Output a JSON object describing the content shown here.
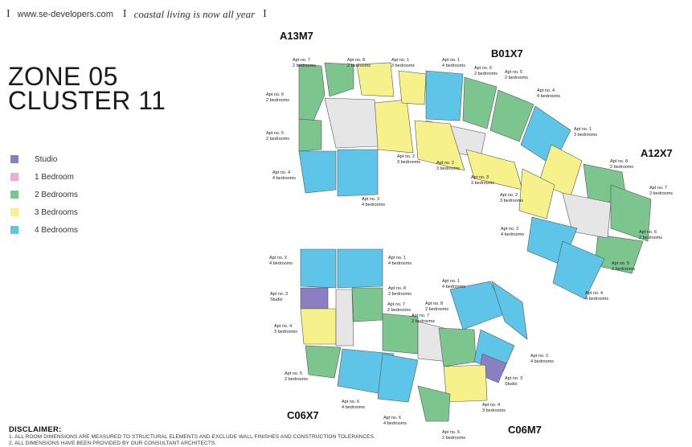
{
  "header": {
    "separator": "I",
    "url": "www.se-developers.com",
    "tagline": "coastal living is now all year"
  },
  "title": {
    "line1": "ZONE 05",
    "line2": "CLUSTER 11"
  },
  "legend": [
    {
      "label": "Studio",
      "color": "#8a7fc0"
    },
    {
      "label": "1 Bedroom",
      "color": "#f4a9d0"
    },
    {
      "label": "2 Bedrooms",
      "color": "#7cc58f"
    },
    {
      "label": "3 Bedrooms",
      "color": "#f7f18c"
    },
    {
      "label": "4 Bedrooms",
      "color": "#5ec4e8"
    }
  ],
  "clusters": {
    "a13m7": "A13M7",
    "b01x7": "B01X7",
    "a12x7": "A12X7",
    "c06x7": "C06X7",
    "c06m7": "C06M7"
  },
  "apartments": [
    {
      "apt": "Apt no. 7",
      "type": "2 bedrooms"
    },
    {
      "apt": "Apt no. 8",
      "type": "2 bedrooms"
    },
    {
      "apt": "Apt no. 1",
      "type": "3 bedrooms"
    },
    {
      "apt": "Apt no. 6",
      "type": "2 bedrooms"
    },
    {
      "apt": "Apt no. 5",
      "type": "2 bedrooms"
    },
    {
      "apt": "Apt no. 4",
      "type": "4 bedrooms"
    },
    {
      "apt": "Apt no. 3",
      "type": "4 bedrooms"
    },
    {
      "apt": "Apt no. 2",
      "type": "3 bedrooms"
    },
    {
      "apt": "Apt no. 1",
      "type": "4 bedrooms"
    },
    {
      "apt": "Apt no. 6",
      "type": "2 bedrooms"
    },
    {
      "apt": "Apt no. 5",
      "type": "2 bedrooms"
    },
    {
      "apt": "Apt no. 4",
      "type": "4 bedrooms"
    },
    {
      "apt": "Apt no. 1",
      "type": "3 bedrooms"
    },
    {
      "apt": "Apt no. 2",
      "type": "3 bedrooms"
    },
    {
      "apt": "Apt no. 3",
      "type": "3 bedrooms"
    },
    {
      "apt": "Apt no. 8",
      "type": "2 bedrooms"
    },
    {
      "apt": "Apt no. 7",
      "type": "2 bedrooms"
    },
    {
      "apt": "Apt no. 2",
      "type": "3 bedrooms"
    },
    {
      "apt": "Apt no. 6",
      "type": "2 bedrooms"
    },
    {
      "apt": "Apt no. 3",
      "type": "4 bedrooms"
    },
    {
      "apt": "Apt no. 5",
      "type": "2 bedrooms"
    },
    {
      "apt": "Apt no. 4",
      "type": "4 bedrooms"
    },
    {
      "apt": "Apt no. 2",
      "type": "4 bedrooms"
    },
    {
      "apt": "Apt no. 1",
      "type": "4 bedrooms"
    },
    {
      "apt": "Apt no. 3",
      "type": "Studio"
    },
    {
      "apt": "Apt no. 8",
      "type": "2 bedrooms"
    },
    {
      "apt": "Apt no. 7",
      "type": "2 bedrooms"
    },
    {
      "apt": "Apt no. 4",
      "type": "3 bedrooms"
    },
    {
      "apt": "Apt no. 5",
      "type": "2 bedrooms"
    },
    {
      "apt": "Apt no. 6",
      "type": "4 bedrooms"
    },
    {
      "apt": "Apt no. 6",
      "type": "4 bedrooms"
    },
    {
      "apt": "Apt no. 1",
      "type": "4 bedrooms"
    },
    {
      "apt": "Apt no. 8",
      "type": "2 bedrooms"
    },
    {
      "apt": "Apt no. 7",
      "type": "2 bedrooms"
    },
    {
      "apt": "Apt no. 2",
      "type": "4 bedrooms"
    },
    {
      "apt": "Apt no. 3",
      "type": "Studio"
    },
    {
      "apt": "Apt no. 4",
      "type": "3 bedrooms"
    },
    {
      "apt": "Apt no. 5",
      "type": "2 bedrooms"
    }
  ],
  "disclaimer": {
    "heading": "DISCLAIMER:",
    "line1": "1. ALL ROOM DIMENSIONS ARE MEASURED TO STRUCTURAL ELEMENTS AND EXCLUDE WALL FINISHES AND CONSTRUCTION TOLERANCES.",
    "line2": "2. ALL DIMENSIONS HAVE BEEN PROVIDED BY OUR CONSULTANT ARCHITECTS."
  }
}
